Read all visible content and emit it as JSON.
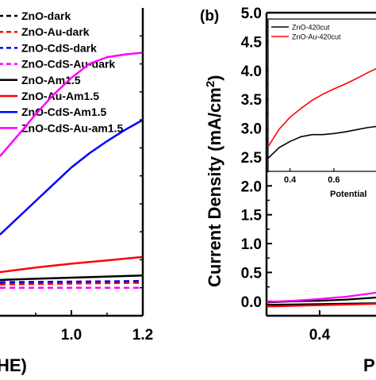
{
  "chart_data": [
    {
      "type": "line",
      "panel": "a",
      "xlabel_fragment": "HE)",
      "x_ticks": [
        1.0,
        1.2
      ],
      "x_tick_labels": [
        "1.0",
        "1.2"
      ],
      "xlim": [
        0.8,
        1.2
      ],
      "ylim": [
        -0.5,
        5.0
      ],
      "series": [
        {
          "name": "ZnO-dark",
          "color": "#000000",
          "dash": "dash",
          "x": [
            0.8,
            1.2
          ],
          "y": [
            0.08,
            0.12
          ]
        },
        {
          "name": "ZnO-Au-dark",
          "color": "#ff0000",
          "dash": "dash",
          "x": [
            0.8,
            1.2
          ],
          "y": [
            0.06,
            0.09
          ]
        },
        {
          "name": "ZnO-CdS-dark",
          "color": "#0000ff",
          "dash": "dash",
          "x": [
            0.8,
            1.2
          ],
          "y": [
            0.1,
            0.12
          ]
        },
        {
          "name": "ZnO-CdS-Au-dark",
          "color": "#ff00ff",
          "dash": "dash",
          "x": [
            0.8,
            1.2
          ],
          "y": [
            0.0,
            0.0
          ]
        },
        {
          "name": "ZnO-Am1.5",
          "color": "#000000",
          "dash": "solid",
          "x": [
            0.8,
            0.9,
            1.0,
            1.1,
            1.2
          ],
          "y": [
            0.14,
            0.16,
            0.18,
            0.2,
            0.22
          ]
        },
        {
          "name": "ZnO-Au-Am1.5",
          "color": "#ff0000",
          "dash": "solid",
          "x": [
            0.8,
            0.9,
            1.0,
            1.1,
            1.2
          ],
          "y": [
            0.28,
            0.36,
            0.43,
            0.49,
            0.55
          ]
        },
        {
          "name": "ZnO-CdS-Am1.5",
          "color": "#0000ff",
          "dash": "solid",
          "x": [
            0.8,
            0.85,
            0.9,
            0.95,
            1.0,
            1.05,
            1.1,
            1.15,
            1.2
          ],
          "y": [
            0.95,
            1.25,
            1.55,
            1.85,
            2.15,
            2.4,
            2.62,
            2.82,
            3.0
          ]
        },
        {
          "name": "ZnO-CdS-Au-am1.5",
          "color": "#ff00ff",
          "dash": "solid",
          "x": [
            0.8,
            0.85,
            0.9,
            0.95,
            1.0,
            1.05,
            1.1,
            1.15,
            1.2
          ],
          "y": [
            2.35,
            2.72,
            3.1,
            3.45,
            3.75,
            4.0,
            4.12,
            4.17,
            4.2
          ]
        }
      ]
    },
    {
      "type": "line",
      "panel": "b",
      "panel_label": "(b)",
      "ylabel": "Current Density (mA/cm²)",
      "ylabel_text": "Current Density (mA/cm",
      "ylabel_sup": "2",
      "ylabel_close": ")",
      "xlabel_fragment": "P",
      "xlim": [
        0.2,
        0.66
      ],
      "ylim": [
        -0.25,
        5.0
      ],
      "y_ticks": [
        0.0,
        0.5,
        1.0,
        1.5,
        2.0,
        2.5,
        3.0,
        3.5,
        4.0,
        4.5,
        5.0
      ],
      "y_tick_labels": [
        "0.0",
        "0.5",
        "1.0",
        "1.5",
        "2.0",
        "2.5",
        "3.0",
        "3.5",
        "4.0",
        "4.5",
        "5.0"
      ],
      "x_ticks": [
        0.4
      ],
      "x_tick_labels": [
        "0.4"
      ],
      "series": [
        {
          "name": "ZnO-dark",
          "color": "#000000",
          "x": [
            0.2,
            0.66
          ],
          "y": [
            -0.06,
            -0.03
          ]
        },
        {
          "name": "ZnO-Au-dark",
          "color": "#ff0000",
          "x": [
            0.2,
            0.66
          ],
          "y": [
            -0.09,
            -0.04
          ]
        },
        {
          "name": "ZnO-Am1.5",
          "color": "#000000",
          "x": [
            0.2,
            0.3,
            0.4,
            0.5,
            0.6,
            0.66
          ],
          "y": [
            -0.02,
            0.0,
            0.01,
            0.03,
            0.06,
            0.09
          ]
        },
        {
          "name": "ZnO-Au-Am1.5",
          "color": "#ff00ff",
          "x": [
            0.2,
            0.3,
            0.4,
            0.5,
            0.6,
            0.66
          ],
          "y": [
            -0.01,
            0.01,
            0.04,
            0.08,
            0.14,
            0.2
          ]
        }
      ],
      "inset": {
        "legend": [
          {
            "name": "ZnO-420cut",
            "color": "#000000"
          },
          {
            "name": "ZnO-Au-420cut",
            "color": "#ff0000"
          }
        ],
        "xlabel_fragment": "Potential",
        "x_ticks": [
          0.4,
          0.6
        ],
        "x_tick_labels": [
          "0.4",
          "0.6"
        ],
        "xlim": [
          0.3,
          0.85
        ],
        "ylim": [
          2.1,
          5.0
        ],
        "series": [
          {
            "name": "ZnO-420cut",
            "color": "#000000",
            "x": [
              0.3,
              0.35,
              0.4,
              0.45,
              0.5,
              0.55,
              0.6,
              0.65,
              0.7,
              0.75,
              0.8
            ],
            "y": [
              2.35,
              2.55,
              2.67,
              2.76,
              2.8,
              2.8,
              2.82,
              2.85,
              2.89,
              2.93,
              2.96
            ]
          },
          {
            "name": "ZnO-Au-420cut",
            "color": "#ff0000",
            "x": [
              0.3,
              0.35,
              0.4,
              0.45,
              0.5,
              0.55,
              0.6,
              0.65,
              0.7,
              0.75,
              0.8
            ],
            "y": [
              2.57,
              2.9,
              3.13,
              3.3,
              3.45,
              3.57,
              3.67,
              3.76,
              3.86,
              3.97,
              4.07
            ]
          }
        ]
      }
    }
  ]
}
